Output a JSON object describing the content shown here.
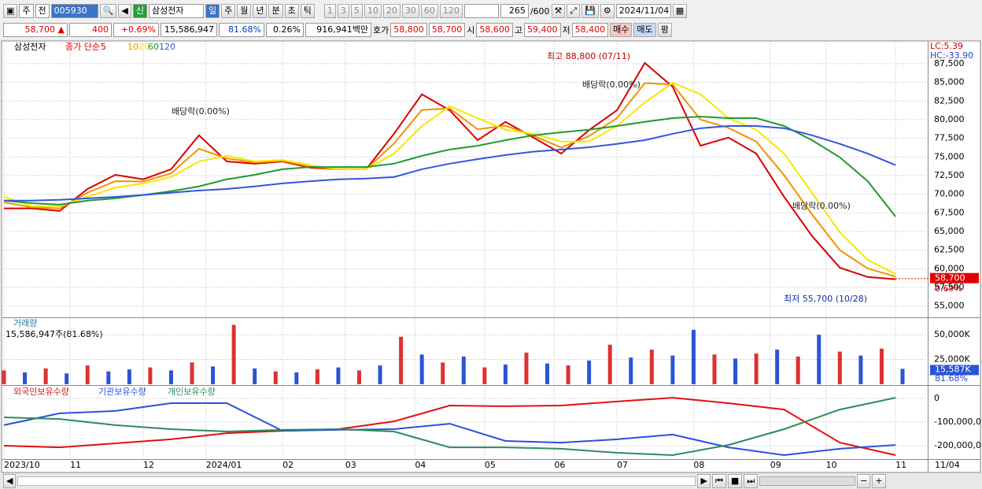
{
  "toolbar": {
    "market": "주",
    "prev": "전",
    "code": "005930",
    "credit": "신",
    "name": "삼성전자",
    "periods": [
      "일",
      "주",
      "월",
      "년",
      "분",
      "초",
      "틱"
    ],
    "intervals": [
      "1",
      "3",
      "5",
      "10",
      "20",
      "30",
      "60",
      "120"
    ],
    "count": "265",
    "max": "/600",
    "date": "2024/11/04"
  },
  "quote": {
    "price": "58,700 ▲",
    "change": "400",
    "change_pct": "+0.69%",
    "volume": "15,586,947",
    "volume_ratio": "81.68%",
    "turnover": "0.26%",
    "amount": "916,941백만",
    "ask_label": "호가",
    "ask": "58,800",
    "bid": "58,700",
    "open_label": "시",
    "open": "58,600",
    "high_label": "고",
    "high": "59,400",
    "low_label": "저",
    "low": "58,400",
    "buy": "매수",
    "sell": "매도",
    "eval": "평"
  },
  "chart_data": [
    {
      "type": "line",
      "title": "삼성전자",
      "legend_title": "종가 단순",
      "lc": "LC:5.39",
      "hc": "HC:-33.90",
      "x": [
        0,
        8,
        16,
        24,
        32,
        40,
        48,
        56,
        64,
        72,
        80,
        88,
        96,
        104,
        112,
        120,
        128,
        136,
        144,
        152,
        160,
        168,
        176,
        184,
        192,
        200,
        208,
        216,
        224,
        232,
        240,
        248,
        256
      ],
      "xlim": [
        0,
        265
      ],
      "ylim": [
        53600,
        90550
      ],
      "yticks": [
        {
          "value": 55000,
          "label": "55,000"
        },
        {
          "value": 57500,
          "label": "57,500"
        },
        {
          "value": 60000,
          "label": "60,000"
        },
        {
          "value": 62500,
          "label": "62,500"
        },
        {
          "value": 65000,
          "label": "65,000"
        },
        {
          "value": 67500,
          "label": "67,500"
        },
        {
          "value": 70000,
          "label": "70,000"
        },
        {
          "value": 72500,
          "label": "72,500"
        },
        {
          "value": 75000,
          "label": "75,000"
        },
        {
          "value": 77500,
          "label": "77,500"
        },
        {
          "value": 80000,
          "label": "80,000"
        },
        {
          "value": 82500,
          "label": "82,500"
        },
        {
          "value": 85000,
          "label": "85,000"
        },
        {
          "value": 87500,
          "label": "87,500"
        }
      ],
      "series": [
        {
          "name": "5",
          "color": "#d80000",
          "values": [
            68100,
            68100,
            67760,
            70700,
            72600,
            72000,
            73350,
            77900,
            74400,
            74100,
            74400,
            73550,
            73350,
            73350,
            78100,
            83400,
            81250,
            77250,
            79700,
            77600,
            75450,
            78600,
            81250,
            87600,
            84400,
            76500,
            77600,
            75450,
            69650,
            64400,
            60150,
            58900,
            58600
          ]
        },
        {
          "name": "10",
          "color": "#f39200",
          "values": [
            68900,
            68250,
            68100,
            70200,
            71750,
            71700,
            72800,
            76100,
            74800,
            74250,
            74500,
            73700,
            73350,
            73350,
            76800,
            81300,
            81500,
            78700,
            79200,
            77850,
            76250,
            77800,
            80200,
            84900,
            84700,
            80000,
            78900,
            77050,
            72550,
            67300,
            62500,
            60050,
            58950
          ]
        },
        {
          "name": "20",
          "color": "#f5e800",
          "values": [
            69650,
            68400,
            68400,
            69650,
            70900,
            71450,
            72300,
            74400,
            75150,
            74400,
            74600,
            73900,
            73350,
            73350,
            75450,
            79150,
            81800,
            80200,
            78650,
            78100,
            77050,
            77050,
            79150,
            82300,
            84950,
            83400,
            80200,
            78650,
            75450,
            70200,
            64900,
            61200,
            59300
          ]
        },
        {
          "name": "60",
          "color": "#1f9a2f",
          "values": [
            69150,
            68800,
            68600,
            69150,
            69450,
            69900,
            70400,
            71050,
            72000,
            72600,
            73350,
            73650,
            73650,
            73650,
            74100,
            75150,
            76000,
            76500,
            77250,
            77900,
            78300,
            78650,
            79150,
            79700,
            80200,
            80400,
            80200,
            80200,
            79150,
            77250,
            74950,
            71750,
            67000
          ]
        },
        {
          "name": "120",
          "color": "#3456dc",
          "values": [
            69150,
            69150,
            69250,
            69450,
            69650,
            69900,
            70200,
            70500,
            70700,
            71050,
            71450,
            71750,
            72000,
            72100,
            72300,
            73350,
            74100,
            74700,
            75250,
            75700,
            76000,
            76300,
            76750,
            77250,
            78100,
            78850,
            79150,
            79150,
            78850,
            77900,
            76750,
            75450,
            73900
          ]
        }
      ],
      "annotations": [
        "최고 88,800 (07/11)",
        "배당락(0.00%)",
        "배당락(0.00%)",
        "배당락(0.00%)",
        "최저 55,700 (10/28)"
      ],
      "last_price": 58700,
      "last_price_label": "58,700",
      "last_pct": "0.69%"
    },
    {
      "type": "bar",
      "title": "거래량",
      "subtitle": "15,586,947주(81.68%)",
      "x": [
        0,
        6,
        12,
        18,
        24,
        30,
        36,
        42,
        48,
        54,
        60,
        66,
        72,
        78,
        84,
        90,
        96,
        102,
        108,
        114,
        120,
        126,
        132,
        138,
        144,
        150,
        156,
        162,
        168,
        174,
        180,
        186,
        192,
        198,
        204,
        210,
        216,
        222,
        228,
        234,
        240,
        246,
        252,
        258
      ],
      "xlim": [
        0,
        265
      ],
      "ylim": [
        0,
        66000
      ],
      "yticks": [
        {
          "value": 50000,
          "label": "50,000K"
        },
        {
          "value": 25000,
          "label": "25,000K"
        }
      ],
      "values": [
        14000,
        12000,
        16000,
        11000,
        19000,
        13000,
        15000,
        17000,
        14000,
        22000,
        18000,
        60000,
        16000,
        13000,
        12000,
        15000,
        17000,
        14000,
        19000,
        48000,
        30000,
        22000,
        28000,
        17000,
        20000,
        32000,
        21000,
        19000,
        24000,
        40000,
        27000,
        35000,
        29000,
        55000,
        30000,
        26000,
        31000,
        35000,
        28000,
        50000,
        33000,
        29000,
        36000,
        15587
      ],
      "colors": [
        "#e03030",
        "#2a55d6",
        "#e03030",
        "#2a55d6",
        "#e03030",
        "#2a55d6",
        "#2a55d6",
        "#e03030",
        "#2a55d6",
        "#e03030",
        "#2a55d6",
        "#e03030",
        "#2a55d6",
        "#e03030",
        "#2a55d6",
        "#e03030",
        "#2a55d6",
        "#e03030",
        "#2a55d6",
        "#e03030",
        "#2a55d6",
        "#e03030",
        "#2a55d6",
        "#e03030",
        "#2a55d6",
        "#e03030",
        "#2a55d6",
        "#e03030",
        "#2a55d6",
        "#e03030",
        "#2a55d6",
        "#e03030",
        "#2a55d6",
        "#2a55d6",
        "#e03030",
        "#2a55d6",
        "#e03030",
        "#2a55d6",
        "#e03030",
        "#2a55d6",
        "#e03030",
        "#2a55d6",
        "#e03030",
        "#2a55d6"
      ],
      "last_label": "15,587K",
      "last_pct": "81.68%"
    },
    {
      "type": "line",
      "x": [
        0,
        16,
        32,
        48,
        64,
        80,
        96,
        112,
        128,
        144,
        160,
        176,
        192,
        208,
        224,
        240,
        256
      ],
      "xlim": [
        0,
        265
      ],
      "ylim": [
        -2566667,
        500000
      ],
      "yticks": [
        0,
        {
          "value": -1000000,
          "label": "-100,000,0"
        },
        {
          "value": -2000000,
          "label": "-200,000,0"
        }
      ],
      "xticks": [
        {
          "value": 0,
          "label": "2023/10"
        },
        {
          "value": 19,
          "label": "11"
        },
        {
          "value": 40,
          "label": "12"
        },
        {
          "value": 58,
          "label": "2024/01"
        },
        {
          "value": 80,
          "label": "02"
        },
        {
          "value": 98,
          "label": "03"
        },
        {
          "value": 118,
          "label": "04"
        },
        {
          "value": 138,
          "label": "05"
        },
        {
          "value": 158,
          "label": "06"
        },
        {
          "value": 176,
          "label": "07"
        },
        {
          "value": 198,
          "label": "08"
        },
        {
          "value": 220,
          "label": "09"
        },
        {
          "value": 236,
          "label": "10"
        },
        {
          "value": 256,
          "label": "11"
        }
      ],
      "end_label": "11/04",
      "series": [
        {
          "name": "외국인보유수량",
          "color": "#e01010",
          "values": [
            -2000000,
            -2070000,
            -1900000,
            -1730000,
            -1470000,
            -1370000,
            -1300000,
            -970000,
            -300000,
            -330000,
            -300000,
            -130000,
            30000,
            -200000,
            -470000,
            -1870000,
            -2400000
          ]
        },
        {
          "name": "기관보유수량",
          "color": "#2a4fe0",
          "values": [
            -1130000,
            -630000,
            -530000,
            -200000,
            -200000,
            -1370000,
            -1330000,
            -1300000,
            -1070000,
            -1800000,
            -1870000,
            -1730000,
            -1530000,
            -2070000,
            -2400000,
            -2130000,
            -1970000
          ]
        },
        {
          "name": "개인보유수량",
          "color": "#2e8b57",
          "values": [
            -800000,
            -870000,
            -1130000,
            -1300000,
            -1400000,
            -1330000,
            -1300000,
            -1400000,
            -2070000,
            -2070000,
            -2130000,
            -2300000,
            -2400000,
            -1970000,
            -1300000,
            -470000,
            30000
          ]
        }
      ]
    }
  ]
}
